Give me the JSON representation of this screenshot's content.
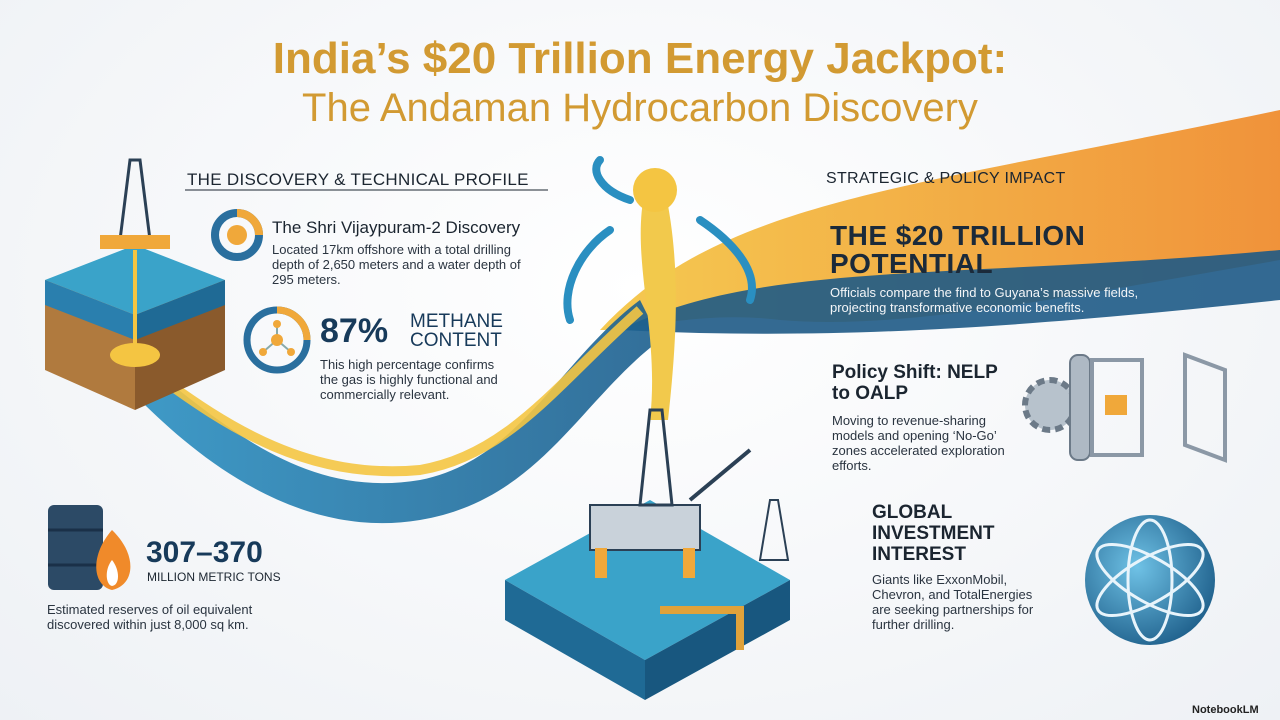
{
  "header": {
    "title_line1": "India’s $20 Trillion Energy Jackpot:",
    "title_line2": "The Andaman Hydrocarbon Discovery"
  },
  "left": {
    "heading": "THE DISCOVERY & TECHNICAL PROFILE",
    "discovery": {
      "title": "The Shri Vijaypuram-2 Discovery",
      "body": "Located 17km offshore with a total drilling depth of 2,650 meters and a water depth of 295 meters."
    },
    "methane": {
      "stat": "87%",
      "label": "METHANE CONTENT",
      "body": "This high percentage confirms the gas is highly functional and commercially relevant."
    },
    "reserves": {
      "stat": "307–370",
      "unit": "MILLION METRIC TONS",
      "body": "Estimated reserves of oil equivalent discovered within just 8,000 sq km."
    }
  },
  "right": {
    "heading": "STRATEGIC & POLICY IMPACT",
    "potential": {
      "title": "THE $20 TRILLION POTENTIAL",
      "body": "Officials compare the find to Guyana’s massive fields, projecting transformative economic benefits."
    },
    "policy": {
      "title": "Policy Shift: NELP to OALP",
      "body": "Moving to revenue-sharing models and opening ‘No-Go’ zones accelerated exploration efforts."
    },
    "investment": {
      "title": "GLOBAL INVESTMENT INTEREST",
      "body": "Giants like ExxonMobil, Chevron, and TotalEnergies are seeking partnerships for further drilling."
    }
  },
  "footer": {
    "watermark": "NotebookLM"
  }
}
